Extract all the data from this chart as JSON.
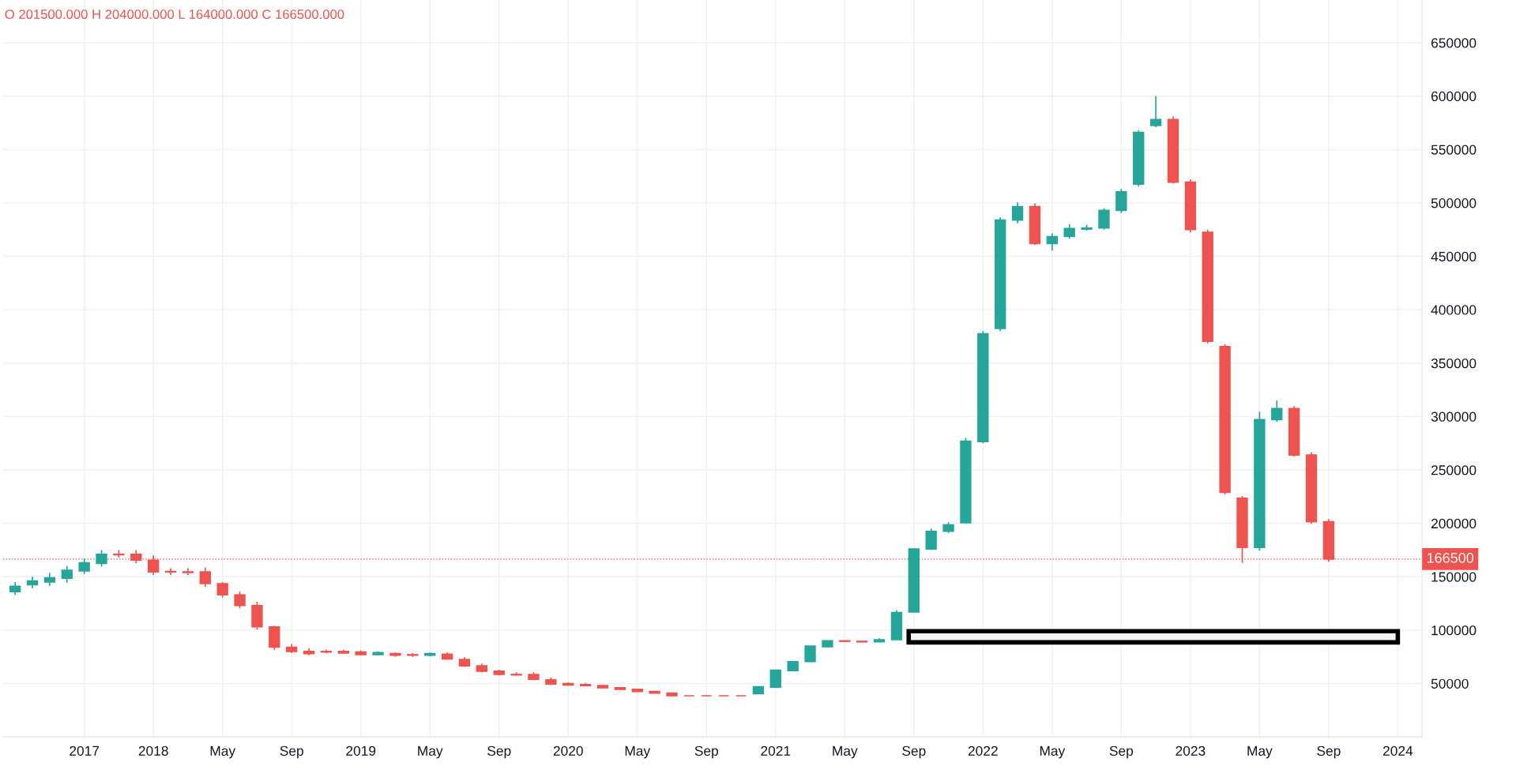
{
  "chart_data": {
    "type": "candlestick",
    "annotations": [
      "O 201500.000 H 204000.000 L 164000.000 C 166500.000"
    ],
    "categories": [
      null,
      null,
      null,
      null,
      "2017",
      null,
      null,
      null,
      "2018",
      null,
      null,
      null,
      "May",
      null,
      null,
      null,
      "Sep",
      null,
      null,
      null,
      "2019",
      null,
      null,
      null,
      "May",
      null,
      null,
      null,
      "Sep",
      null,
      null,
      null,
      "2020",
      null,
      null,
      null,
      "May",
      null,
      null,
      null,
      "Sep",
      null,
      null,
      null,
      "2021",
      null,
      null,
      null,
      "May",
      null,
      null,
      null,
      "Sep",
      null,
      null,
      null,
      "2022",
      null,
      null,
      null,
      "May",
      null,
      null,
      null,
      "Sep",
      null,
      null,
      null,
      "2023",
      null,
      null,
      null,
      "May",
      null,
      null,
      null,
      "Sep",
      null,
      null,
      null,
      "2024",
      null
    ],
    "ohlc": [
      [
        136000,
        145000,
        133000,
        141000
      ],
      [
        142500,
        150000,
        139000,
        146000
      ],
      [
        145000,
        153500,
        141500,
        149000
      ],
      [
        148500,
        160000,
        144500,
        156000
      ],
      [
        155500,
        167000,
        152500,
        163000
      ],
      [
        162500,
        175000,
        159500,
        171000
      ],
      [
        171000,
        175000,
        168000,
        170500
      ],
      [
        171000,
        175000,
        162500,
        165500
      ],
      [
        165500,
        170000,
        151500,
        154500
      ],
      [
        155000,
        158000,
        151500,
        154500
      ],
      [
        154500,
        158000,
        151500,
        154000
      ],
      [
        154500,
        158500,
        140500,
        143500
      ],
      [
        143500,
        145000,
        130500,
        133000
      ],
      [
        133000,
        136000,
        120500,
        123000
      ],
      [
        123000,
        126500,
        100500,
        103000
      ],
      [
        103000,
        104000,
        81500,
        84000
      ],
      [
        84000,
        87000,
        78500,
        80000
      ],
      [
        80000,
        83000,
        76500,
        78000
      ],
      [
        80000,
        81500,
        78500,
        79500
      ],
      [
        80000,
        81500,
        78000,
        78500
      ],
      [
        79500,
        81000,
        76500,
        77000
      ],
      [
        77000,
        80000,
        76500,
        79000
      ],
      [
        78000,
        79000,
        75000,
        76500
      ],
      [
        77000,
        78500,
        75000,
        76500
      ],
      [
        76500,
        79000,
        75500,
        78000
      ],
      [
        77500,
        79000,
        72500,
        73000
      ],
      [
        72500,
        74500,
        65500,
        66500
      ],
      [
        66500,
        68500,
        60500,
        61500
      ],
      [
        61500,
        63000,
        57500,
        58500
      ],
      [
        58500,
        60500,
        57500,
        58000
      ],
      [
        58500,
        60500,
        53000,
        54000
      ],
      [
        53500,
        55500,
        48500,
        49500
      ],
      [
        50000,
        51000,
        48000,
        48500
      ],
      [
        49000,
        50500,
        47500,
        48000
      ],
      [
        48000,
        48500,
        45500,
        46000
      ],
      [
        46000,
        46500,
        44000,
        44500
      ],
      [
        44500,
        45000,
        42000,
        42500
      ],
      [
        42500,
        43000,
        40500,
        41000
      ],
      [
        41000,
        41000,
        38500,
        38500
      ],
      [
        38500,
        38500,
        38500,
        38500
      ],
      [
        38500,
        38500,
        38500,
        38500
      ],
      [
        38500,
        38500,
        38500,
        38500
      ],
      [
        38500,
        38500,
        38500,
        38500
      ],
      [
        40500,
        47000,
        40500,
        47000
      ],
      [
        46500,
        62500,
        46500,
        62500
      ],
      [
        62000,
        70500,
        62000,
        70500
      ],
      [
        70500,
        85000,
        70000,
        85000
      ],
      [
        84500,
        90000,
        84500,
        90000
      ],
      [
        90000,
        90000,
        89000,
        89500
      ],
      [
        89500,
        89500,
        88500,
        89000
      ],
      [
        89000,
        92500,
        89000,
        91000
      ],
      [
        91000,
        118500,
        91000,
        116500
      ],
      [
        117000,
        176500,
        117000,
        176000
      ],
      [
        176000,
        195000,
        175000,
        192500
      ],
      [
        192500,
        201000,
        191000,
        198500
      ],
      [
        200500,
        280000,
        199500,
        277000
      ],
      [
        276500,
        380000,
        275000,
        377500
      ],
      [
        382500,
        486500,
        380000,
        484000
      ],
      [
        484000,
        500500,
        481000,
        496500
      ],
      [
        496500,
        499500,
        460500,
        462000
      ],
      [
        462000,
        471500,
        455500,
        468500
      ],
      [
        468500,
        480000,
        466500,
        476000
      ],
      [
        475500,
        479500,
        474000,
        476500
      ],
      [
        476500,
        495000,
        475000,
        493000
      ],
      [
        493000,
        513000,
        490500,
        510500
      ],
      [
        517500,
        568000,
        515500,
        566000
      ],
      [
        572500,
        600000,
        571000,
        578000
      ],
      [
        578000,
        581000,
        518000,
        519500
      ],
      [
        519500,
        522000,
        472500,
        475000
      ],
      [
        472500,
        475000,
        368500,
        370500
      ],
      [
        365500,
        367500,
        227000,
        229000
      ],
      [
        223500,
        225500,
        163000,
        177500
      ],
      [
        177500,
        304500,
        174500,
        297000
      ],
      [
        297000,
        315000,
        295000,
        307500
      ],
      [
        307500,
        309500,
        262500,
        264000
      ],
      [
        264000,
        266500,
        199500,
        201500
      ],
      [
        201500,
        204000,
        164000,
        166500
      ],
      null,
      null,
      null,
      null,
      null
    ],
    "colors": [
      "#26a69a",
      "#26a69a",
      "#26a69a",
      "#26a69a",
      "#26a69a",
      "#26a69a",
      "#ef5350",
      "#ef5350",
      "#ef5350",
      "#ef5350",
      "#ef5350",
      "#ef5350",
      "#ef5350",
      "#ef5350",
      "#ef5350",
      "#ef5350",
      "#ef5350",
      "#ef5350",
      "#ef5350",
      "#ef5350",
      "#ef5350",
      "#26a69a",
      "#ef5350",
      "#ef5350",
      "#26a69a",
      "#ef5350",
      "#ef5350",
      "#ef5350",
      "#ef5350",
      "#ef5350",
      "#ef5350",
      "#ef5350",
      "#ef5350",
      "#ef5350",
      "#ef5350",
      "#ef5350",
      "#ef5350",
      "#ef5350",
      "#ef5350",
      "#ef5350",
      "#ef5350",
      "#ef5350",
      "#ef5350",
      "#26a69a",
      "#26a69a",
      "#26a69a",
      "#26a69a",
      "#26a69a",
      "#ef5350",
      "#ef5350",
      "#26a69a",
      "#26a69a",
      "#26a69a",
      "#26a69a",
      "#26a69a",
      "#26a69a",
      "#26a69a",
      "#26a69a",
      "#26a69a",
      "#ef5350",
      "#26a69a",
      "#26a69a",
      "#26a69a",
      "#26a69a",
      "#26a69a",
      "#26a69a",
      "#26a69a",
      "#ef5350",
      "#ef5350",
      "#ef5350",
      "#ef5350",
      "#ef5350",
      "#26a69a",
      "#26a69a",
      "#ef5350",
      "#ef5350",
      "#ef5350",
      null,
      null,
      null,
      null,
      null
    ],
    "ylim": [
      0,
      690000
    ],
    "yticks": [
      50000,
      100000,
      150000,
      200000,
      250000,
      300000,
      350000,
      400000,
      450000,
      500000,
      550000,
      600000,
      650000
    ],
    "grid": true,
    "ref_lines": [
      {
        "axis": "y",
        "value": 166500,
        "label": "166500",
        "color": "#ef5350",
        "line_style": "dotted"
      }
    ],
    "bands": [
      {
        "axis": "y",
        "from": 88500,
        "to": 99000,
        "color": "#000000"
      }
    ]
  }
}
